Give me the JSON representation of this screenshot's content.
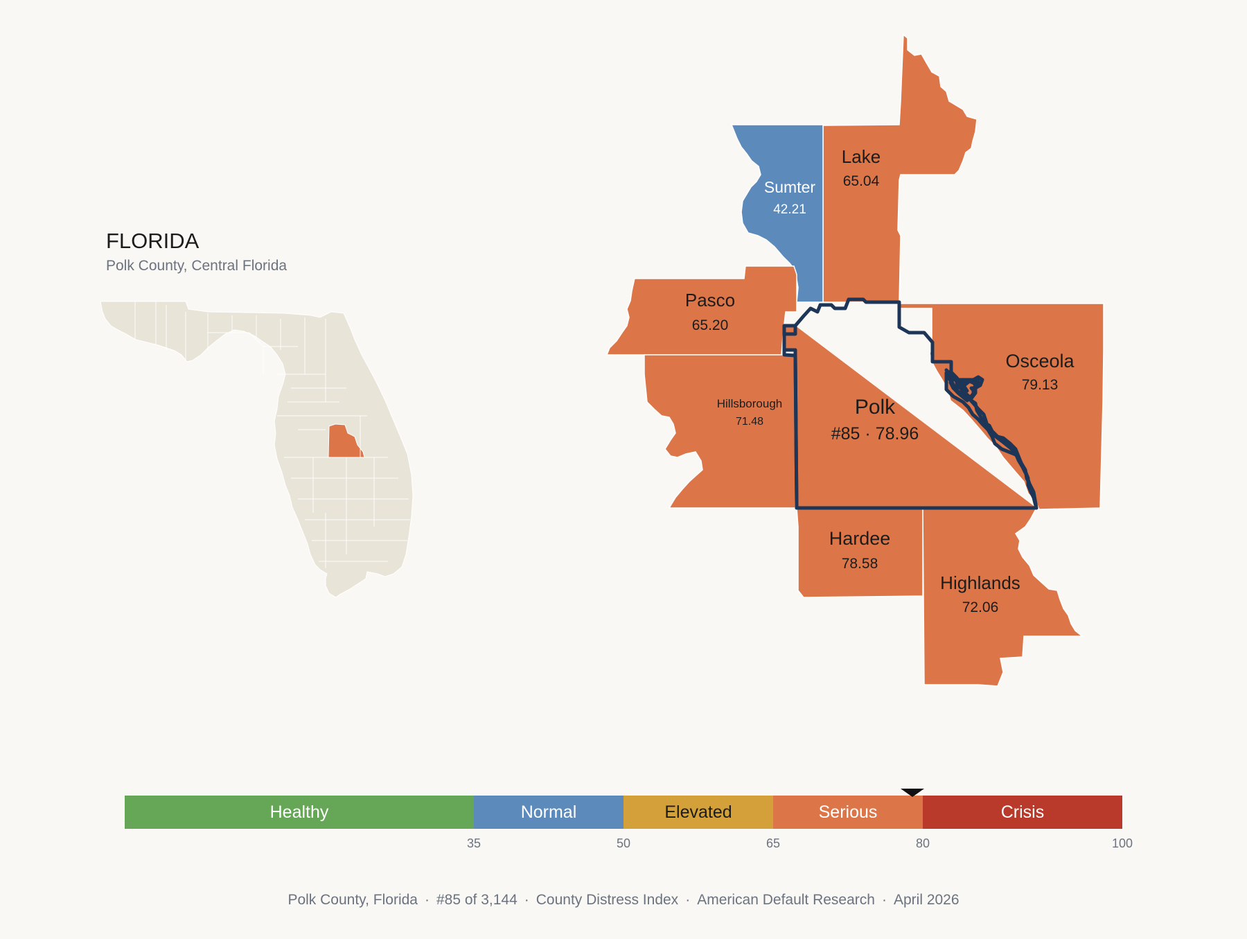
{
  "state": {
    "title": "FLORIDA",
    "subtitle": "Polk County, Central Florida"
  },
  "colors": {
    "background": "#faf8f4",
    "state_fill": "#e9e4d8",
    "serious": "#dc7649",
    "normal": "#5b8abb",
    "healthy": "#66a657",
    "elevated": "#d3a03a",
    "crisis": "#b93a2a",
    "focus_outline": "#1d3557"
  },
  "counties": [
    {
      "name": "Lake",
      "score": "65.04",
      "category": "serious"
    },
    {
      "name": "Sumter",
      "score": "42.21",
      "category": "normal"
    },
    {
      "name": "Pasco",
      "score": "65.20",
      "category": "serious"
    },
    {
      "name": "Osceola",
      "score": "79.13",
      "category": "serious"
    },
    {
      "name": "Hillsborough",
      "score": "71.48",
      "category": "serious"
    },
    {
      "name": "Polk",
      "score": "#85 · 78.96",
      "category": "serious",
      "focus": true
    },
    {
      "name": "Hardee",
      "score": "78.58",
      "category": "serious"
    },
    {
      "name": "Highlands",
      "score": "72.06",
      "category": "serious"
    }
  ],
  "scale": {
    "min": 0,
    "max": 100,
    "marker_value": 78.96,
    "bands": [
      {
        "label": "Healthy",
        "from": 0,
        "to": 35,
        "color": "#66a657"
      },
      {
        "label": "Normal",
        "from": 35,
        "to": 50,
        "color": "#5b8abb"
      },
      {
        "label": "Elevated",
        "from": 50,
        "to": 65,
        "color": "#d3a03a"
      },
      {
        "label": "Serious",
        "from": 65,
        "to": 80,
        "color": "#dc7649"
      },
      {
        "label": "Crisis",
        "from": 80,
        "to": 100,
        "color": "#b93a2a"
      }
    ],
    "ticks": [
      "35",
      "50",
      "65",
      "80",
      "100"
    ]
  },
  "footer": {
    "county": "Polk County, Florida",
    "rank": "#85 of 3,144",
    "index": "County Distress Index",
    "source": "American Default Research",
    "date": "April 2026"
  }
}
